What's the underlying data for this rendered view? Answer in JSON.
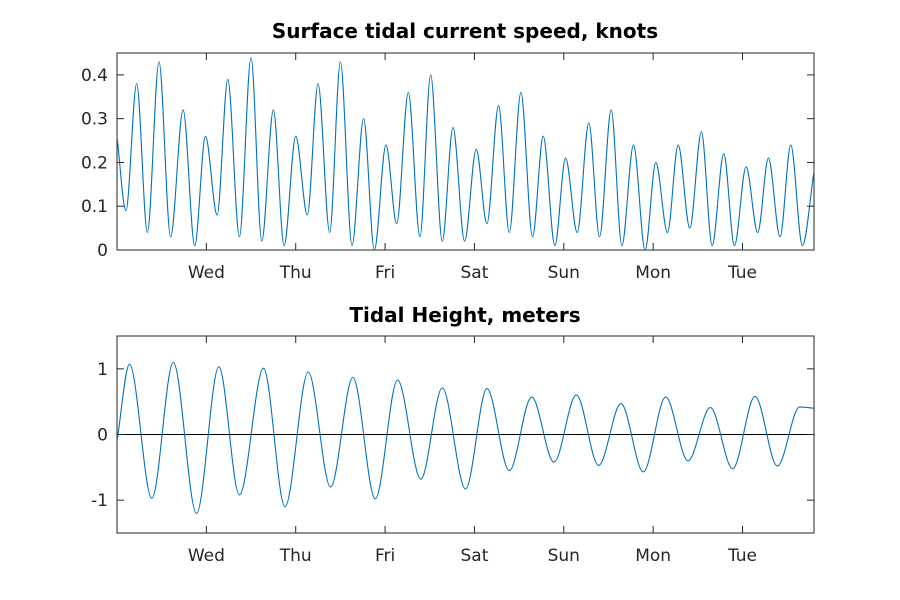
{
  "colors": {
    "series": "#0072BD",
    "axis": "#262626",
    "background": "#ffffff"
  },
  "chart_data": [
    {
      "type": "line",
      "title": "Surface tidal current speed, knots",
      "xlabel": "",
      "ylabel": "",
      "x_unit": "days",
      "xlim": [
        0,
        7.8
      ],
      "ylim": [
        0,
        0.45
      ],
      "xticks": [
        {
          "value": 1,
          "label": "Wed"
        },
        {
          "value": 2,
          "label": "Thu"
        },
        {
          "value": 3,
          "label": "Fri"
        },
        {
          "value": 4,
          "label": "Sat"
        },
        {
          "value": 5,
          "label": "Sun"
        },
        {
          "value": 6,
          "label": "Mon"
        },
        {
          "value": 7,
          "label": "Tue"
        }
      ],
      "yticks": [
        {
          "value": 0,
          "label": "0"
        },
        {
          "value": 0.1,
          "label": "0.1"
        },
        {
          "value": 0.2,
          "label": "0.2"
        },
        {
          "value": 0.3,
          "label": "0.3"
        },
        {
          "value": 0.4,
          "label": "0.4"
        }
      ],
      "grid": false,
      "series": [
        {
          "x": [
            0,
            0.1,
            0.22,
            0.34,
            0.47,
            0.6,
            0.74,
            0.87,
            0.99,
            1.12,
            1.24,
            1.37,
            1.5,
            1.62,
            1.75,
            1.87,
            2.0,
            2.13,
            2.25,
            2.38,
            2.5,
            2.63,
            2.76,
            2.88,
            3.01,
            3.13,
            3.26,
            3.39,
            3.51,
            3.64,
            3.76,
            3.89,
            4.02,
            4.14,
            4.27,
            4.39,
            4.52,
            4.65,
            4.77,
            4.9,
            5.02,
            5.15,
            5.28,
            5.4,
            5.53,
            5.65,
            5.78,
            5.91,
            6.03,
            6.16,
            6.28,
            6.41,
            6.54,
            6.66,
            6.79,
            6.91,
            7.04,
            7.17,
            7.29,
            7.42,
            7.54,
            7.67,
            7.8
          ],
          "y": [
            0.26,
            0.09,
            0.38,
            0.04,
            0.43,
            0.03,
            0.32,
            0.01,
            0.26,
            0.08,
            0.39,
            0.03,
            0.44,
            0.02,
            0.32,
            0.01,
            0.26,
            0.08,
            0.38,
            0.04,
            0.43,
            0.01,
            0.3,
            0.0,
            0.24,
            0.06,
            0.36,
            0.03,
            0.4,
            0.02,
            0.28,
            0.02,
            0.23,
            0.06,
            0.33,
            0.04,
            0.36,
            0.03,
            0.26,
            0.01,
            0.21,
            0.04,
            0.29,
            0.03,
            0.32,
            0.01,
            0.24,
            0.0,
            0.2,
            0.04,
            0.24,
            0.05,
            0.27,
            0.01,
            0.22,
            0.01,
            0.19,
            0.04,
            0.21,
            0.03,
            0.24,
            0.01,
            0.18
          ]
        }
      ]
    },
    {
      "type": "line",
      "title": "Tidal Height, meters",
      "xlabel": "",
      "ylabel": "",
      "x_unit": "days",
      "xlim": [
        0,
        7.8
      ],
      "ylim": [
        -1.5,
        1.5
      ],
      "xticks": [
        {
          "value": 1,
          "label": "Wed"
        },
        {
          "value": 2,
          "label": "Thu"
        },
        {
          "value": 3,
          "label": "Fri"
        },
        {
          "value": 4,
          "label": "Sat"
        },
        {
          "value": 5,
          "label": "Sun"
        },
        {
          "value": 6,
          "label": "Mon"
        },
        {
          "value": 7,
          "label": "Tue"
        }
      ],
      "yticks": [
        {
          "value": -1,
          "label": "-1"
        },
        {
          "value": 0,
          "label": "0"
        },
        {
          "value": 1,
          "label": "1"
        }
      ],
      "zero_line": true,
      "grid": false,
      "series": [
        {
          "x": [
            0,
            0.14,
            0.39,
            0.63,
            0.89,
            1.14,
            1.37,
            1.64,
            1.88,
            2.14,
            2.39,
            2.64,
            2.89,
            3.14,
            3.4,
            3.64,
            3.9,
            4.14,
            4.39,
            4.64,
            4.89,
            5.14,
            5.39,
            5.64,
            5.89,
            6.14,
            6.39,
            6.64,
            6.89,
            7.14,
            7.39,
            7.64,
            7.8
          ],
          "y": [
            -0.1,
            1.07,
            -0.97,
            1.1,
            -1.2,
            1.03,
            -0.92,
            1.01,
            -1.1,
            0.95,
            -0.8,
            0.87,
            -0.98,
            0.83,
            -0.68,
            0.71,
            -0.83,
            0.7,
            -0.55,
            0.57,
            -0.42,
            0.6,
            -0.47,
            0.47,
            -0.57,
            0.57,
            -0.4,
            0.41,
            -0.52,
            0.58,
            -0.48,
            0.42,
            0.4
          ]
        }
      ]
    }
  ]
}
